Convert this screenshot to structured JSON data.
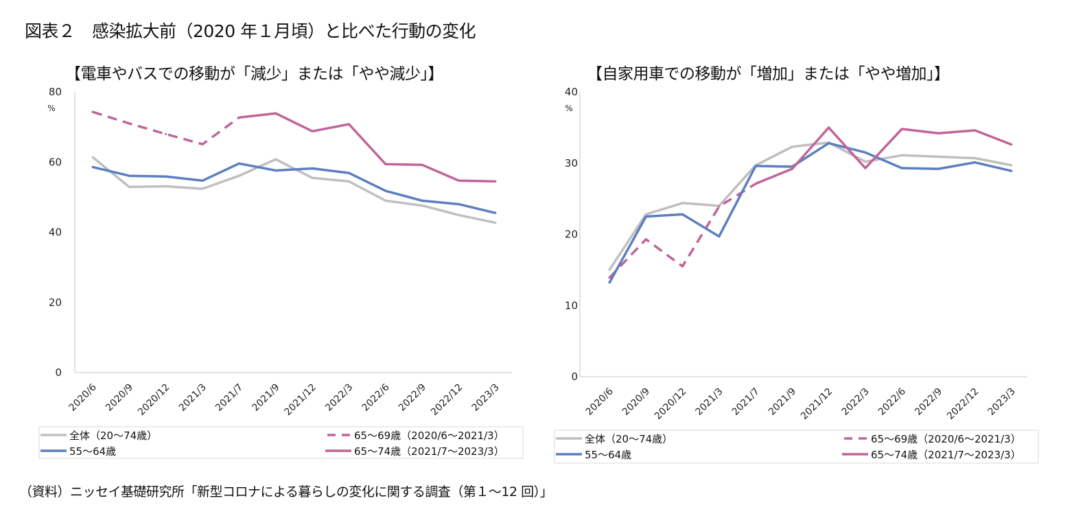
{
  "figure_title": "図表２　感染拡大前（2020 年１月頃）と比べた行動の変化",
  "source_note": "（資料）ニッセイ基礎研究所「新型コロナによる暮らしの変化に関する調査（第１～12 回）」",
  "colors": {
    "overall": "#BFBFBF",
    "age55_64": "#5B7FBF",
    "age65_69": "#C0649A",
    "age65_74": "#C0649A",
    "axis": "#D9D9D9"
  },
  "chart_data": [
    {
      "type": "line",
      "title": "【電車やバスでの移動が「減少」または「やや減少」】",
      "unit_label": "%",
      "xlabel": "",
      "ylabel": "%",
      "ylim": [
        0,
        80
      ],
      "yticks": [
        "0",
        "20",
        "40",
        "60",
        "80"
      ],
      "ytick_values": [
        0,
        20,
        40,
        60,
        80
      ],
      "grid": false,
      "legend_position": "bottom",
      "categories": [
        "2020/6",
        "2020/9",
        "2020/12",
        "2021/3",
        "2021/7",
        "2021/9",
        "2021/12",
        "2022/3",
        "2022/6",
        "2022/9",
        "2022/12",
        "2023/3"
      ],
      "series": [
        {
          "name": "全体（20～74歳）",
          "style": "solid",
          "color_key": "overall",
          "values": [
            61.4,
            52.9,
            53.1,
            52.4,
            56.1,
            60.8,
            55.5,
            54.5,
            49.0,
            47.6,
            44.9,
            42.7
          ]
        },
        {
          "name": "65～69歳（2020/6～2021/3）",
          "style": "dashed",
          "color_key": "age65_69",
          "values": [
            74.3,
            71.0,
            68.0,
            65.1,
            72.7,
            null,
            null,
            null,
            null,
            null,
            null,
            null
          ]
        },
        {
          "name": "55～64歳",
          "style": "solid",
          "color_key": "age55_64",
          "values": [
            58.6,
            56.1,
            55.9,
            54.7,
            59.6,
            57.6,
            58.2,
            56.9,
            51.8,
            49.0,
            48.0,
            45.5
          ]
        },
        {
          "name": "65～74歳（2021/7～2023/3）",
          "style": "solid",
          "color_key": "age65_74",
          "values": [
            null,
            null,
            null,
            null,
            72.7,
            73.9,
            68.8,
            70.8,
            59.4,
            59.2,
            54.7,
            54.5
          ]
        }
      ]
    },
    {
      "type": "line",
      "title": "【自家用車での移動が「増加」または「やや増加」】",
      "unit_label": "%",
      "xlabel": "",
      "ylabel": "%",
      "ylim": [
        0,
        40
      ],
      "yticks": [
        "0",
        "10",
        "20",
        "30",
        "40"
      ],
      "ytick_values": [
        0,
        10,
        20,
        30,
        40
      ],
      "grid": false,
      "legend_position": "bottom",
      "categories": [
        "2020/6",
        "2020/9",
        "2020/12",
        "2021/3",
        "2021/7",
        "2021/9",
        "2021/12",
        "2022/3",
        "2022/6",
        "2022/9",
        "2022/12",
        "2023/3"
      ],
      "series": [
        {
          "name": "全体（20～74歳）",
          "style": "solid",
          "color_key": "overall",
          "values": [
            15.0,
            22.8,
            24.4,
            24.0,
            29.7,
            32.3,
            32.9,
            30.2,
            31.1,
            30.9,
            30.7,
            29.7
          ]
        },
        {
          "name": "65～69歳（2020/6～2021/3）",
          "style": "dashed",
          "color_key": "age65_69",
          "values": [
            13.9,
            19.3,
            15.5,
            23.9,
            27.1,
            null,
            null,
            null,
            null,
            null,
            null,
            null
          ]
        },
        {
          "name": "55～64歳",
          "style": "solid",
          "color_key": "age55_64",
          "values": [
            13.2,
            22.5,
            22.8,
            19.7,
            29.6,
            29.5,
            32.8,
            31.5,
            29.3,
            29.2,
            30.1,
            28.9
          ]
        },
        {
          "name": "65～74歳（2021/7～2023/3）",
          "style": "solid",
          "color_key": "age65_74",
          "values": [
            null,
            null,
            null,
            null,
            27.1,
            29.2,
            35.0,
            29.3,
            34.8,
            34.2,
            34.6,
            32.6
          ]
        }
      ]
    }
  ]
}
